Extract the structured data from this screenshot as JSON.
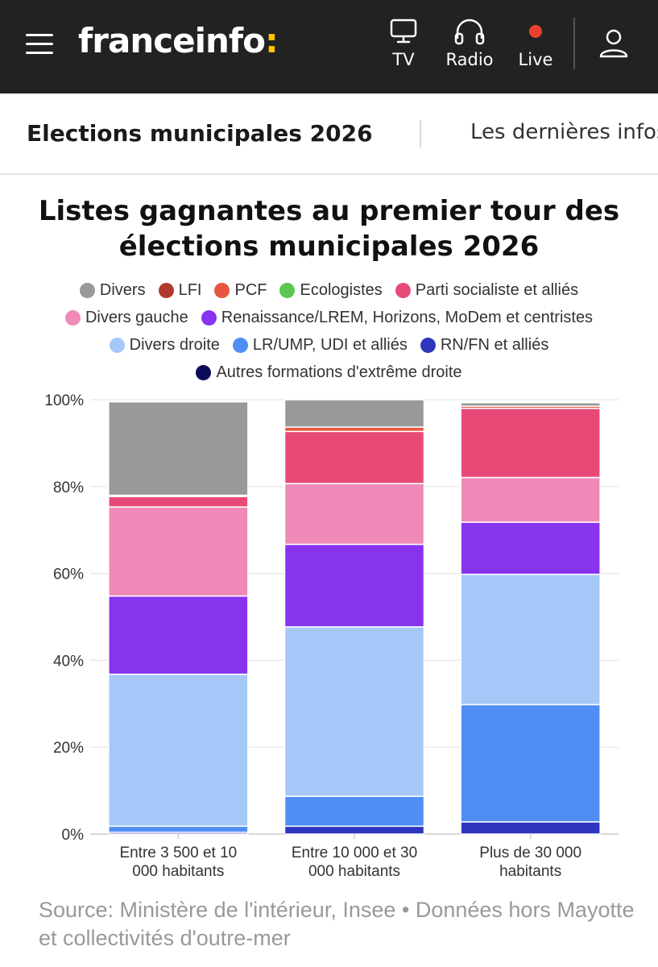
{
  "header": {
    "logo_text": "franceinfo",
    "logo_colon": ":",
    "nav": [
      {
        "label": "TV",
        "icon": "tv-icon"
      },
      {
        "label": "Radio",
        "icon": "headphones-icon"
      },
      {
        "label": "Live",
        "icon": "live-dot-icon"
      }
    ],
    "colors": {
      "bar": "#222222",
      "accent": "#ffc400",
      "live": "#e8422f"
    }
  },
  "subnav": {
    "title": "Elections municipales 2026",
    "link": "Les dernières infos"
  },
  "chart_data": {
    "type": "bar",
    "stacked": true,
    "title_line1": "Listes gagnantes au premier tour des",
    "title_line2": "élections municipales 2026",
    "categories": [
      [
        "Entre 3 500 et 10",
        "000 habitants"
      ],
      [
        "Entre 10 000 et 30",
        "000 habitants"
      ],
      [
        "Plus de 30 000",
        "habitants"
      ]
    ],
    "ylim": [
      0,
      100
    ],
    "yticks": [
      "0%",
      "20%",
      "40%",
      "60%",
      "80%",
      "100%"
    ],
    "grid": true,
    "legend_position": "top",
    "series": [
      {
        "name": "Autres formations d'extrême droite",
        "color": "#0d0a5c",
        "values": [
          0,
          0,
          0
        ]
      },
      {
        "name": "RN/FN et alliés",
        "color": "#2d36bd",
        "values": [
          0.4,
          1.8,
          2.8
        ]
      },
      {
        "name": "LR/UMP, UDI et alliés",
        "color": "#4f8ff5",
        "values": [
          1.4,
          6.9,
          27
        ]
      },
      {
        "name": "Divers droite",
        "color": "#a5c8f8",
        "values": [
          35,
          39,
          30
        ]
      },
      {
        "name": "Renaissance/LREM, Horizons, MoDem et centristes",
        "color": "#8833ee",
        "values": [
          18,
          19,
          12
        ]
      },
      {
        "name": "Divers gauche",
        "color": "#ef8ab8",
        "values": [
          20.5,
          14,
          10.3
        ]
      },
      {
        "name": "Parti socialiste et alliés",
        "color": "#e84a78",
        "values": [
          2.4,
          12,
          15.9
        ]
      },
      {
        "name": "Ecologistes",
        "color": "#5cc651",
        "values": [
          0,
          0,
          0
        ]
      },
      {
        "name": "PCF",
        "color": "#e8553e",
        "values": [
          0.3,
          1,
          0.5
        ]
      },
      {
        "name": "LFI",
        "color": "#b03a2e",
        "values": [
          0,
          0,
          0
        ]
      },
      {
        "name": "Divers",
        "color": "#999999",
        "values": [
          21.5,
          6.3,
          0.8
        ]
      }
    ],
    "legend_order": [
      "Divers",
      "LFI",
      "PCF",
      "Ecologistes",
      "Parti socialiste et alliés",
      "Divers gauche",
      "Renaissance/LREM, Horizons, MoDem et centristes",
      "Divers droite",
      "LR/UMP, UDI et alliés",
      "RN/FN et alliés",
      "Autres formations d'extrême droite"
    ],
    "source": "Source: Ministère de l'intérieur, Insee • Données hors Mayotte et collectivités d'outre-mer"
  }
}
